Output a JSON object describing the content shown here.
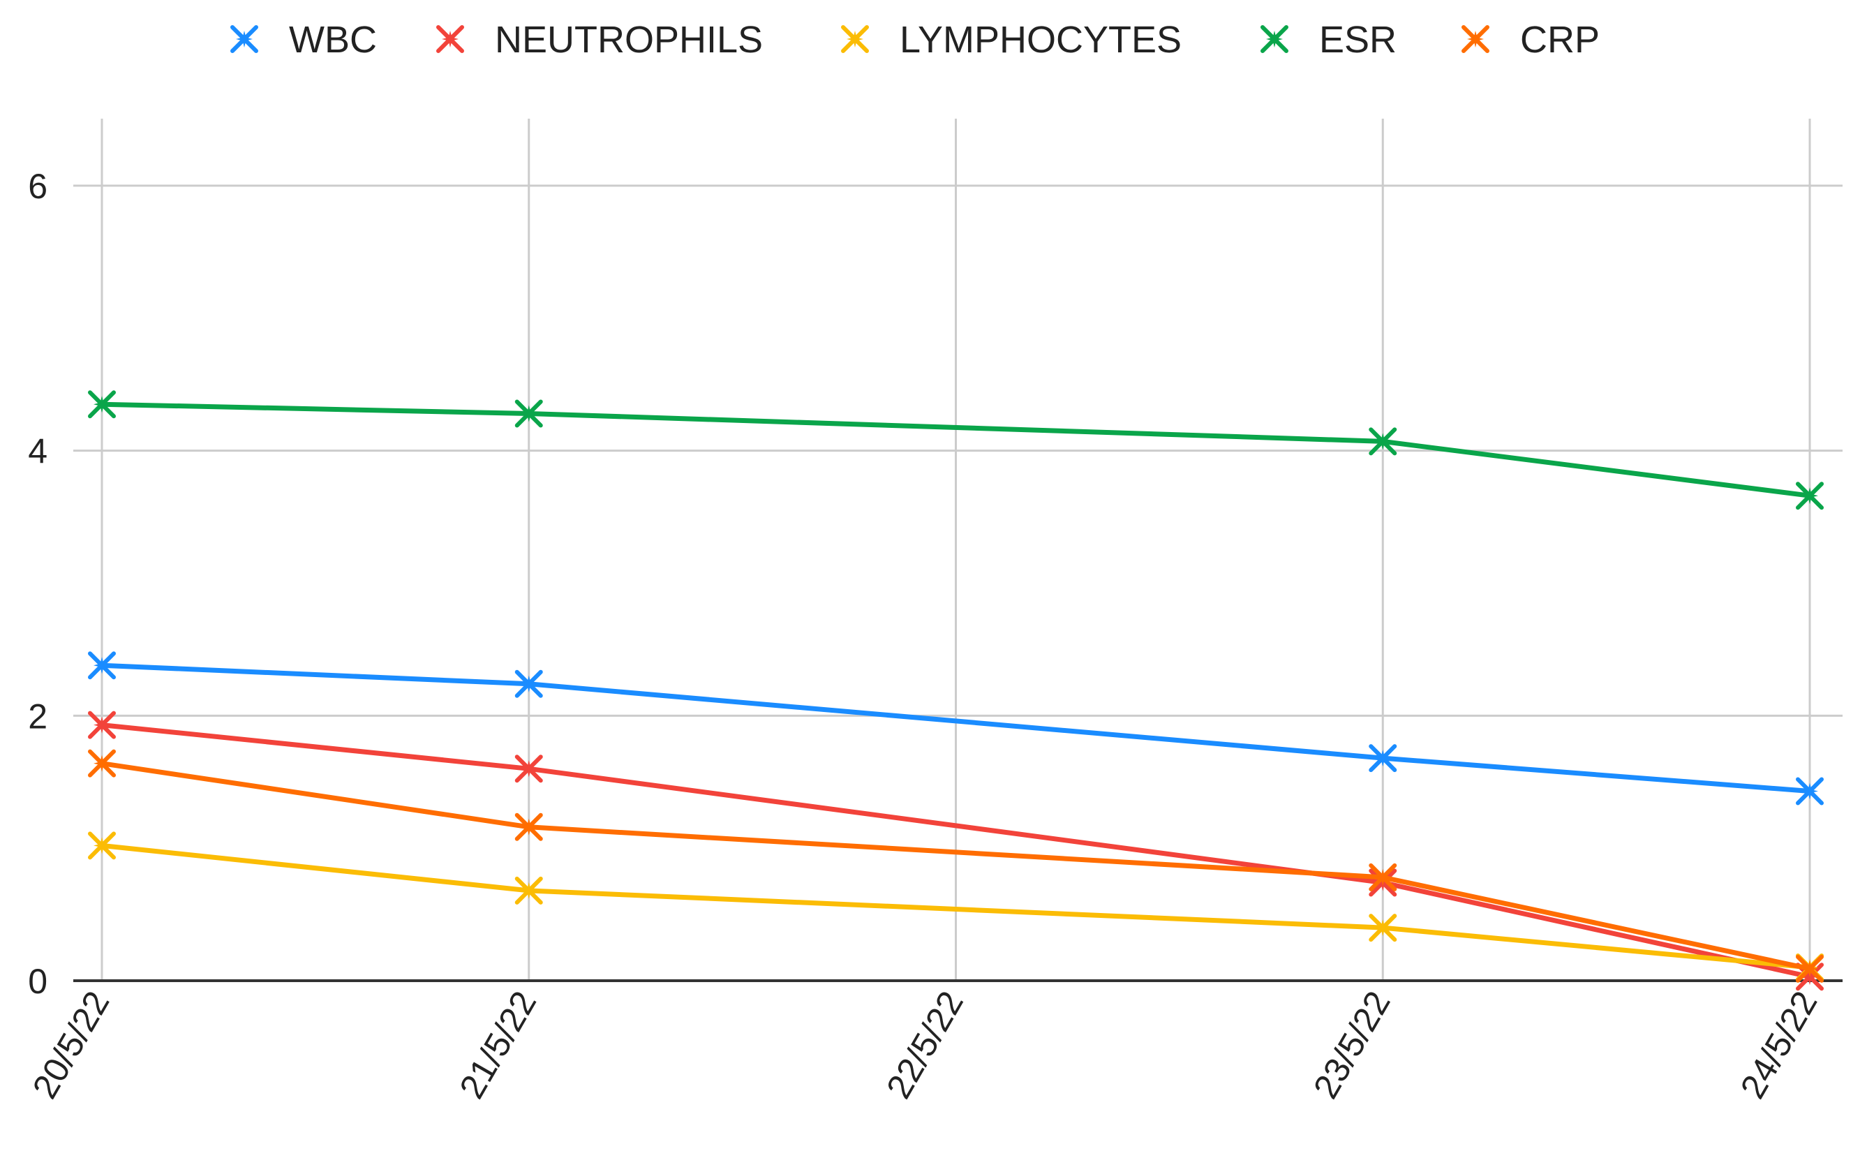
{
  "chart_data": {
    "type": "line",
    "title": "",
    "xlabel": "",
    "ylabel": "",
    "categories": [
      "20/5/22",
      "21/5/22",
      "22/5/22",
      "23/5/22",
      "24/5/22"
    ],
    "ylim": [
      0,
      6.5
    ],
    "yticks": [
      0,
      2,
      4,
      6
    ],
    "grid": true,
    "legend_position": "top",
    "point_marker": "star",
    "series": [
      {
        "name": "WBC",
        "color": "#1a8cff",
        "points": [
          [
            0,
            2.38
          ],
          [
            1,
            2.24
          ],
          [
            3,
            1.68
          ],
          [
            4,
            1.43
          ]
        ]
      },
      {
        "name": "NEUTROPHILS",
        "color": "#f2433a",
        "points": [
          [
            0,
            1.93
          ],
          [
            1,
            1.6
          ],
          [
            3,
            0.74
          ],
          [
            4,
            0.03
          ]
        ]
      },
      {
        "name": "LYMPHOCYTES",
        "color": "#fbbc05",
        "points": [
          [
            0,
            1.02
          ],
          [
            1,
            0.68
          ],
          [
            3,
            0.4
          ],
          [
            4,
            0.1
          ]
        ]
      },
      {
        "name": "ESR",
        "color": "#0aa54a",
        "points": [
          [
            0,
            4.35
          ],
          [
            1,
            4.28
          ],
          [
            3,
            4.07
          ],
          [
            4,
            3.66
          ]
        ]
      },
      {
        "name": "CRP",
        "color": "#ff6d01",
        "points": [
          [
            0,
            1.64
          ],
          [
            1,
            1.16
          ],
          [
            3,
            0.78
          ],
          [
            4,
            0.09
          ]
        ]
      }
    ]
  }
}
